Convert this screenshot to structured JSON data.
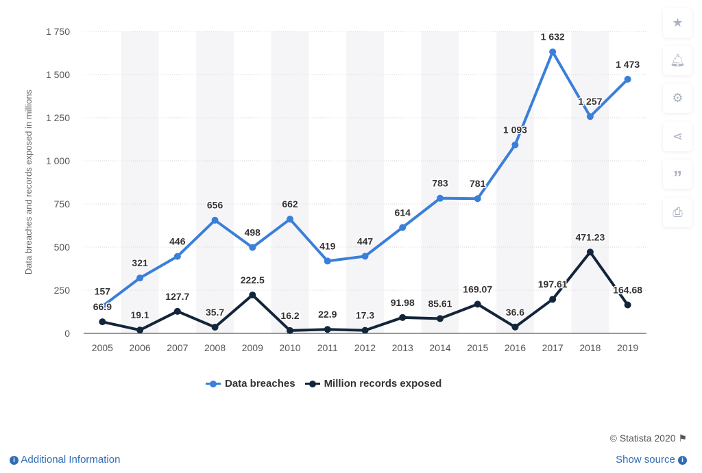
{
  "chart_data": {
    "type": "line",
    "categories": [
      "2005",
      "2006",
      "2007",
      "2008",
      "2009",
      "2010",
      "2011",
      "2012",
      "2013",
      "2014",
      "2015",
      "2016",
      "2017",
      "2018",
      "2019"
    ],
    "ylabel": "Data breaches and records exposed in millions",
    "ylim": [
      0,
      1750
    ],
    "yticks": [
      0,
      250,
      500,
      750,
      1000,
      1250,
      1500,
      1750
    ],
    "ytick_labels": [
      "0",
      "250",
      "500",
      "750",
      "1 000",
      "1 250",
      "1 500",
      "1 750"
    ],
    "grid": true,
    "legend_position": "bottom",
    "series": [
      {
        "name": "Data breaches",
        "color": "#3a7fd9",
        "values": [
          157,
          321,
          446,
          656,
          498,
          662,
          419,
          447,
          614,
          783,
          781,
          1093,
          1632,
          1257,
          1473
        ],
        "labels": [
          "157",
          "321",
          "446",
          "656",
          "498",
          "662",
          "419",
          "447",
          "614",
          "783",
          "781",
          "1 093",
          "1 632",
          "1 257",
          "1 473"
        ]
      },
      {
        "name": "Million records exposed",
        "color": "#13253a",
        "values": [
          66.9,
          19.1,
          127.7,
          35.7,
          222.5,
          16.2,
          22.9,
          17.3,
          91.98,
          85.61,
          169.07,
          36.6,
          197.61,
          471.23,
          164.68
        ],
        "labels": [
          "66.9",
          "19.1",
          "127.7",
          "35.7",
          "222.5",
          "16.2",
          "22.9",
          "17.3",
          "91.98",
          "85.61",
          "169.07",
          "36.6",
          "197.61",
          "471.23",
          "164.68"
        ]
      }
    ]
  },
  "sidebar": {
    "icons": [
      "star-icon",
      "bell-icon",
      "gear-icon",
      "share-icon",
      "quote-icon",
      "print-icon"
    ]
  },
  "footer": {
    "credit": "© Statista 2020",
    "additional_info": "Additional Information",
    "show_source": "Show source"
  }
}
